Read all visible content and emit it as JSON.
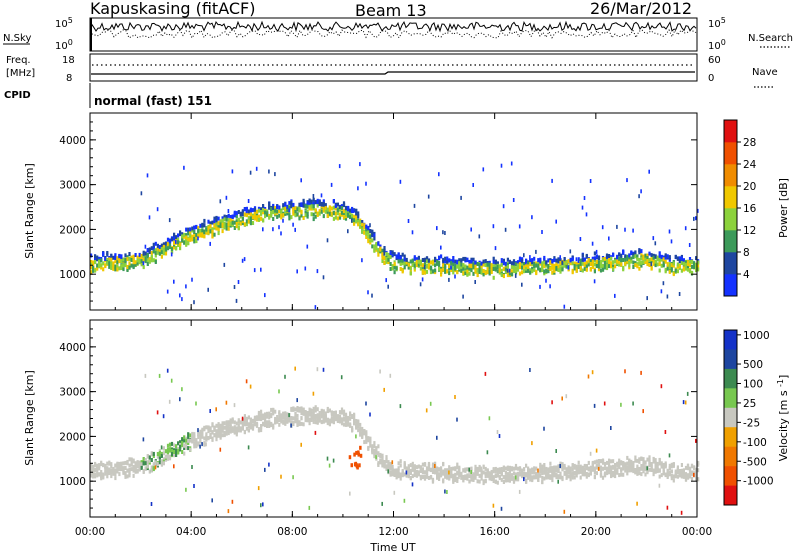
{
  "header": {
    "station": "Kapuskasing (fitACF)",
    "beam": "Beam 13",
    "date": "26/Mar/2012"
  },
  "top_panels": {
    "nsky_label": "N.Sky",
    "nsky_ticks": [
      "10^5",
      "10^0"
    ],
    "nsearch_label": "N.Search",
    "nsearch_ticks": [
      "10^5",
      "10^0"
    ],
    "freq_label": "Freq.",
    "freq_unit": "[MHz]",
    "freq_ticks": [
      "18",
      "8"
    ],
    "nave_label": "Nave",
    "nave_ticks": [
      "60",
      "0"
    ],
    "cpid_label": "CPID",
    "cpid_value": "normal (fast) 151"
  },
  "colors": {
    "power": [
      "#1432ff",
      "#1e46a0",
      "#3c9a5a",
      "#8cd23c",
      "#f0c800",
      "#f08c00",
      "#f05000",
      "#e01010"
    ],
    "velocity": [
      "#1432c8",
      "#1e46a0",
      "#3c8a50",
      "#78c850",
      "#c8c8c0",
      "#f0a000",
      "#f07800",
      "#f05000",
      "#e01010"
    ]
  },
  "chart_data": [
    {
      "type": "heatmap",
      "ylabel": "Slant Range [km]",
      "ylim": [
        200,
        4600
      ],
      "yticks": [
        1000,
        2000,
        3000,
        4000
      ],
      "xlim": [
        0,
        24
      ],
      "xticks": [
        "00:00",
        "04:00",
        "08:00",
        "12:00",
        "16:00",
        "20:00",
        "00:00"
      ],
      "colorbar": {
        "label": "Power [dB]",
        "ticks": [
          "4",
          "8",
          "12",
          "16",
          "20",
          "24",
          "28"
        ],
        "range": [
          0,
          30
        ]
      },
      "echo_band": {
        "hours": [
          0,
          1,
          2,
          2.5,
          3,
          3.5,
          4,
          5,
          6,
          7,
          8,
          9,
          10,
          10.5,
          11,
          11.5,
          12,
          14,
          16,
          18,
          20,
          21,
          22,
          23,
          24
        ],
        "center_km": [
          1280,
          1320,
          1380,
          1500,
          1650,
          1800,
          1950,
          2150,
          2300,
          2430,
          2480,
          2500,
          2450,
          2300,
          1900,
          1500,
          1300,
          1230,
          1180,
          1230,
          1300,
          1350,
          1400,
          1250,
          1250
        ]
      }
    },
    {
      "type": "heatmap",
      "ylabel": "Slant Range [km]",
      "ylim": [
        200,
        4600
      ],
      "yticks": [
        1000,
        2000,
        3000,
        4000
      ],
      "xlim": [
        0,
        24
      ],
      "xticks": [
        "00:00",
        "04:00",
        "08:00",
        "12:00",
        "16:00",
        "20:00",
        "00:00"
      ],
      "xlabel": "Time UT",
      "colorbar": {
        "label": "Velocity [m s^-1]",
        "ticks": [
          "1000",
          "500",
          "100",
          "25",
          "-25",
          "-100",
          "-500",
          "-1000"
        ],
        "range": [
          -1000,
          1000
        ]
      }
    }
  ]
}
